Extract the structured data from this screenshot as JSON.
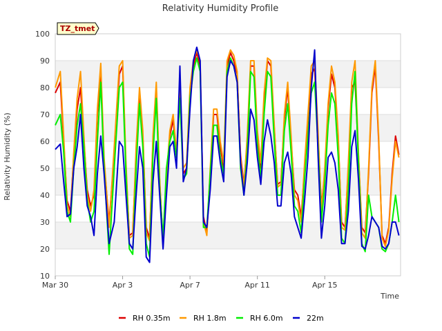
{
  "chart_data": {
    "type": "line",
    "title": "Relativity Humidity Profile",
    "xlabel": "Time",
    "ylabel": "Relativity Humidity (%)",
    "tag": "TZ_tmet",
    "ylim": [
      10,
      100
    ],
    "yticks": [
      10,
      20,
      30,
      40,
      50,
      60,
      70,
      80,
      90,
      100
    ],
    "xlim": [
      0,
      20.5
    ],
    "xticks": [
      {
        "day": 0,
        "label": "Mar 30"
      },
      {
        "day": 4,
        "label": "Apr 3"
      },
      {
        "day": 8,
        "label": "Apr 7"
      },
      {
        "day": 12,
        "label": "Apr 11"
      },
      {
        "day": 16,
        "label": "Apr 15"
      }
    ],
    "colors": {
      "plot_bg": "#ffffff",
      "band": "#f2f2f2",
      "tag_bg": "#ffffcc"
    },
    "series": [
      {
        "name": "RH 0.35m",
        "color": "#dd0000",
        "x": [
          0.0,
          0.3,
          0.5,
          0.7,
          0.9,
          1.1,
          1.3,
          1.5,
          1.7,
          1.9,
          2.1,
          2.3,
          2.5,
          2.7,
          2.9,
          3.2,
          3.5,
          3.8,
          4.0,
          4.2,
          4.4,
          4.6,
          4.8,
          5.0,
          5.2,
          5.4,
          5.6,
          5.8,
          6.0,
          6.2,
          6.4,
          6.6,
          6.8,
          7.0,
          7.2,
          7.4,
          7.6,
          7.8,
          8.0,
          8.2,
          8.4,
          8.6,
          8.8,
          9.0,
          9.2,
          9.4,
          9.6,
          9.8,
          10.0,
          10.2,
          10.4,
          10.6,
          10.8,
          11.0,
          11.2,
          11.4,
          11.6,
          11.8,
          12.0,
          12.2,
          12.4,
          12.6,
          12.8,
          13.0,
          13.2,
          13.4,
          13.6,
          13.8,
          14.0,
          14.2,
          14.4,
          14.6,
          14.8,
          15.0,
          15.2,
          15.4,
          15.6,
          15.8,
          16.0,
          16.2,
          16.4,
          16.6,
          16.8,
          17.0,
          17.2,
          17.4,
          17.6,
          17.8,
          18.0,
          18.2,
          18.4,
          18.6,
          18.8,
          19.0,
          19.2,
          19.4,
          19.6,
          19.8,
          20.0,
          20.2,
          20.4
        ],
        "values": [
          78,
          82,
          60,
          38,
          34,
          55,
          72,
          80,
          60,
          42,
          36,
          40,
          70,
          86,
          52,
          30,
          55,
          85,
          88,
          50,
          25,
          26,
          55,
          78,
          62,
          28,
          24,
          60,
          80,
          45,
          22,
          45,
          62,
          68,
          55,
          78,
          48,
          50,
          78,
          88,
          93,
          88,
          32,
          26,
          48,
          70,
          70,
          58,
          50,
          88,
          93,
          90,
          85,
          55,
          44,
          60,
          88,
          88,
          62,
          50,
          75,
          90,
          88,
          65,
          44,
          45,
          68,
          80,
          60,
          42,
          40,
          32,
          50,
          68,
          85,
          87,
          62,
          36,
          48,
          72,
          85,
          80,
          60,
          30,
          28,
          50,
          80,
          82,
          55,
          28,
          26,
          48,
          78,
          88,
          60,
          25,
          22,
          28,
          48,
          62,
          55
        ]
      },
      {
        "name": "RH 1.8m",
        "color": "#ff9900",
        "x": [
          0.0,
          0.3,
          0.5,
          0.7,
          0.9,
          1.1,
          1.3,
          1.5,
          1.7,
          1.9,
          2.1,
          2.3,
          2.5,
          2.7,
          2.9,
          3.2,
          3.5,
          3.8,
          4.0,
          4.2,
          4.4,
          4.6,
          4.8,
          5.0,
          5.2,
          5.4,
          5.6,
          5.8,
          6.0,
          6.2,
          6.4,
          6.6,
          6.8,
          7.0,
          7.2,
          7.4,
          7.6,
          7.8,
          8.0,
          8.2,
          8.4,
          8.6,
          8.8,
          9.0,
          9.2,
          9.4,
          9.6,
          9.8,
          10.0,
          10.2,
          10.4,
          10.6,
          10.8,
          11.0,
          11.2,
          11.4,
          11.6,
          11.8,
          12.0,
          12.2,
          12.4,
          12.6,
          12.8,
          13.0,
          13.2,
          13.4,
          13.6,
          13.8,
          14.0,
          14.2,
          14.4,
          14.6,
          14.8,
          15.0,
          15.2,
          15.4,
          15.6,
          15.8,
          16.0,
          16.2,
          16.4,
          16.6,
          16.8,
          17.0,
          17.2,
          17.4,
          17.6,
          17.8,
          18.0,
          18.2,
          18.4,
          18.6,
          18.8,
          19.0,
          19.2,
          19.4,
          19.6,
          19.8,
          20.0,
          20.2,
          20.4
        ],
        "values": [
          80,
          86,
          62,
          36,
          32,
          56,
          76,
          86,
          62,
          40,
          34,
          42,
          72,
          89,
          54,
          28,
          58,
          88,
          90,
          52,
          24,
          25,
          58,
          80,
          64,
          26,
          23,
          62,
          82,
          46,
          21,
          46,
          64,
          70,
          56,
          80,
          50,
          52,
          80,
          90,
          94,
          90,
          30,
          25,
          50,
          72,
          72,
          60,
          52,
          90,
          94,
          92,
          86,
          54,
          43,
          62,
          90,
          90,
          64,
          52,
          78,
          91,
          90,
          66,
          43,
          44,
          70,
          82,
          62,
          40,
          38,
          30,
          52,
          70,
          88,
          90,
          64,
          34,
          50,
          74,
          88,
          82,
          62,
          28,
          27,
          52,
          82,
          90,
          56,
          26,
          24,
          50,
          80,
          90,
          62,
          24,
          21,
          27,
          46,
          60,
          54
        ]
      },
      {
        "name": "RH 6.0m",
        "color": "#00ee00",
        "x": [
          0.0,
          0.3,
          0.5,
          0.7,
          0.9,
          1.1,
          1.3,
          1.5,
          1.7,
          1.9,
          2.1,
          2.3,
          2.5,
          2.7,
          2.9,
          3.2,
          3.5,
          3.8,
          4.0,
          4.2,
          4.4,
          4.6,
          4.8,
          5.0,
          5.2,
          5.4,
          5.6,
          5.8,
          6.0,
          6.2,
          6.4,
          6.6,
          6.8,
          7.0,
          7.2,
          7.4,
          7.6,
          7.8,
          8.0,
          8.2,
          8.4,
          8.6,
          8.8,
          9.0,
          9.2,
          9.4,
          9.6,
          9.8,
          10.0,
          10.2,
          10.4,
          10.6,
          10.8,
          11.0,
          11.2,
          11.4,
          11.6,
          11.8,
          12.0,
          12.2,
          12.4,
          12.6,
          12.8,
          13.0,
          13.2,
          13.4,
          13.6,
          13.8,
          14.0,
          14.2,
          14.4,
          14.6,
          14.8,
          15.0,
          15.2,
          15.4,
          15.6,
          15.8,
          16.0,
          16.2,
          16.4,
          16.6,
          16.8,
          17.0,
          17.2,
          17.4,
          17.6,
          17.8,
          18.0,
          18.2,
          18.4,
          18.6,
          18.8,
          19.0,
          19.2,
          19.4,
          19.6,
          19.8,
          20.0,
          20.2,
          20.4
        ],
        "values": [
          66,
          70,
          56,
          34,
          30,
          50,
          66,
          74,
          58,
          38,
          30,
          34,
          60,
          82,
          50,
          18,
          50,
          80,
          82,
          48,
          20,
          18,
          50,
          74,
          58,
          22,
          17,
          55,
          76,
          42,
          24,
          50,
          60,
          64,
          54,
          76,
          46,
          48,
          76,
          86,
          91,
          86,
          28,
          28,
          48,
          66,
          66,
          54,
          48,
          86,
          91,
          88,
          82,
          50,
          40,
          56,
          86,
          84,
          58,
          46,
          70,
          86,
          84,
          60,
          40,
          40,
          64,
          74,
          56,
          36,
          34,
          26,
          46,
          62,
          78,
          82,
          58,
          30,
          44,
          66,
          78,
          74,
          54,
          24,
          22,
          42,
          74,
          86,
          52,
          22,
          19,
          40,
          32,
          30,
          28,
          20,
          19,
          22,
          30,
          40,
          30
        ]
      },
      {
        "name": "22m",
        "color": "#0000cc",
        "x": [
          0.0,
          0.3,
          0.5,
          0.7,
          0.9,
          1.1,
          1.3,
          1.5,
          1.7,
          1.9,
          2.1,
          2.3,
          2.5,
          2.7,
          2.9,
          3.2,
          3.5,
          3.8,
          4.0,
          4.2,
          4.4,
          4.6,
          4.8,
          5.0,
          5.2,
          5.4,
          5.6,
          5.8,
          6.0,
          6.2,
          6.4,
          6.6,
          6.8,
          7.0,
          7.2,
          7.4,
          7.6,
          7.8,
          8.0,
          8.2,
          8.4,
          8.6,
          8.8,
          9.0,
          9.2,
          9.4,
          9.6,
          9.8,
          10.0,
          10.2,
          10.4,
          10.6,
          10.8,
          11.0,
          11.2,
          11.4,
          11.6,
          11.8,
          12.0,
          12.2,
          12.4,
          12.6,
          12.8,
          13.0,
          13.2,
          13.4,
          13.6,
          13.8,
          14.0,
          14.2,
          14.4,
          14.6,
          14.8,
          15.0,
          15.2,
          15.4,
          15.6,
          15.8,
          16.0,
          16.2,
          16.4,
          16.6,
          16.8,
          17.0,
          17.2,
          17.4,
          17.6,
          17.8,
          18.0,
          18.2,
          18.4,
          18.6,
          18.8,
          19.0,
          19.2,
          19.4,
          19.6,
          19.8,
          20.0,
          20.2,
          20.4
        ],
        "values": [
          57,
          59,
          45,
          32,
          33,
          50,
          58,
          70,
          50,
          36,
          32,
          25,
          48,
          62,
          48,
          22,
          30,
          60,
          58,
          40,
          22,
          20,
          40,
          58,
          50,
          17,
          15,
          45,
          60,
          40,
          20,
          40,
          58,
          60,
          50,
          88,
          45,
          50,
          72,
          90,
          95,
          90,
          30,
          28,
          42,
          62,
          62,
          52,
          45,
          84,
          90,
          88,
          82,
          52,
          40,
          52,
          72,
          68,
          54,
          44,
          60,
          68,
          62,
          52,
          36,
          36,
          52,
          56,
          48,
          32,
          28,
          24,
          38,
          54,
          80,
          94,
          55,
          24,
          36,
          54,
          56,
          52,
          42,
          22,
          22,
          34,
          58,
          64,
          46,
          21,
          20,
          25,
          32,
          30,
          28,
          21,
          20,
          22,
          30,
          30,
          25
        ]
      }
    ]
  }
}
